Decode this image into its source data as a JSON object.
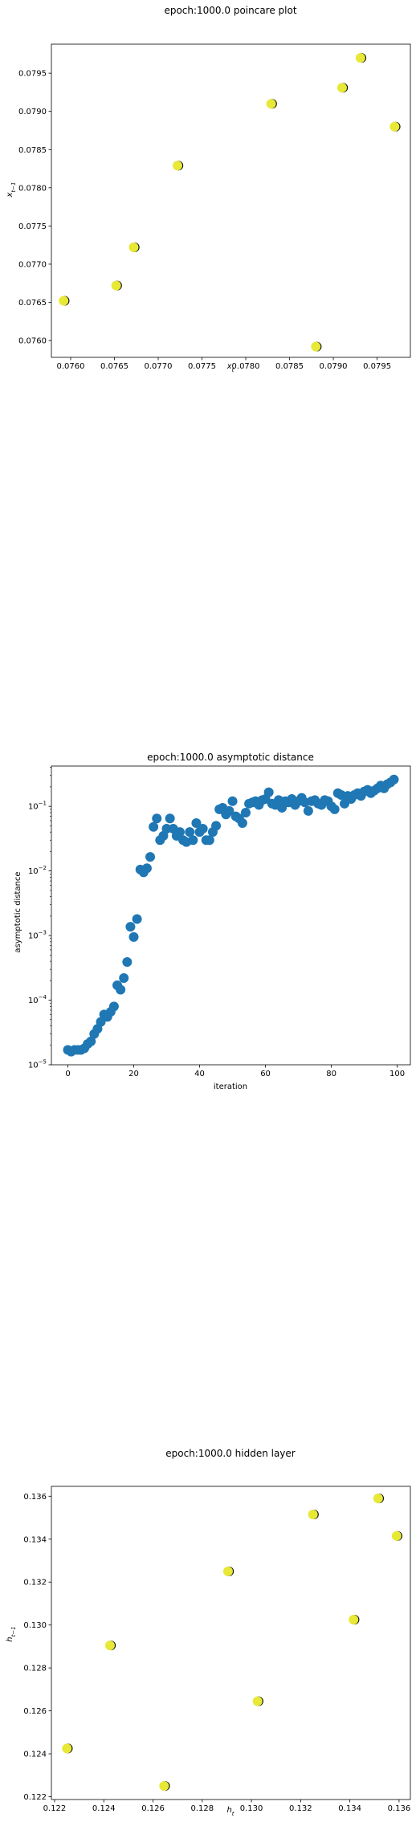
{
  "colors": {
    "scatter_fill": "#e8e837",
    "scatter_edge": "#111111",
    "dist_fill": "#1f77b4",
    "axis": "#000000"
  },
  "chart_data": [
    {
      "type": "scatter",
      "title": "epoch:1000.0 poincare plot",
      "xlabel": "x_t",
      "ylabel": "x_{t-1}",
      "xlim": [
        0.07578,
        0.07988
      ],
      "ylim": [
        0.07578,
        0.07988
      ],
      "xscale": "linear",
      "yscale": "linear",
      "grid": false,
      "xticks": [
        "0.0760",
        "0.0765",
        "0.0770",
        "0.0775",
        "0.0780",
        "0.0785",
        "0.0790",
        "0.0795"
      ],
      "yticks": [
        "0.0760",
        "0.0765",
        "0.0770",
        "0.0775",
        "0.0780",
        "0.0785",
        "0.0790",
        "0.0795"
      ],
      "x": [
        0.07592,
        0.07652,
        0.07672,
        0.07722,
        0.07829,
        0.0788,
        0.0791,
        0.07931,
        0.0797
      ],
      "y": [
        0.07652,
        0.07672,
        0.07722,
        0.07829,
        0.0791,
        0.07592,
        0.07931,
        0.0797,
        0.0788
      ]
    },
    {
      "type": "scatter",
      "title": "epoch:1000.0 asymptotic distance",
      "xlabel": "iteration",
      "ylabel": "asymptotic distance",
      "xlim": [
        -5,
        104
      ],
      "ylim": [
        1e-05,
        0.42
      ],
      "xscale": "linear",
      "yscale": "log",
      "grid": false,
      "xticks": [
        "0",
        "20",
        "40",
        "60",
        "80",
        "100"
      ],
      "yticks": [
        "10^{-5}",
        "10^{-4}",
        "10^{-3}",
        "10^{-2}",
        "10^{-1}"
      ],
      "x": [
        0,
        1,
        2,
        3,
        4,
        5,
        6,
        7,
        8,
        9,
        10,
        11,
        12,
        13,
        14,
        15,
        16,
        17,
        18,
        19,
        20,
        21,
        22,
        23,
        24,
        25,
        26,
        27,
        28,
        29,
        30,
        31,
        32,
        33,
        34,
        35,
        36,
        37,
        38,
        39,
        40,
        41,
        42,
        43,
        44,
        45,
        46,
        47,
        48,
        49,
        50,
        51,
        52,
        53,
        54,
        55,
        56,
        57,
        58,
        59,
        60,
        61,
        62,
        63,
        64,
        65,
        66,
        67,
        68,
        69,
        70,
        71,
        72,
        73,
        74,
        75,
        76,
        77,
        78,
        79,
        80,
        81,
        82,
        83,
        84,
        85,
        86,
        87,
        88,
        89,
        90,
        91,
        92,
        93,
        94,
        95,
        96,
        97,
        98,
        99
      ],
      "y": [
        1.7e-05,
        1.6e-05,
        1.7e-05,
        1.7e-05,
        1.7e-05,
        1.8e-05,
        2.1e-05,
        2.3e-05,
        3e-05,
        3.6e-05,
        4.6e-05,
        6e-05,
        5.5e-05,
        6.6e-05,
        8e-05,
        0.00017,
        0.000145,
        0.00022,
        0.00039,
        0.00137,
        0.00095,
        0.0018,
        0.0105,
        0.0095,
        0.011,
        0.0165,
        0.048,
        0.065,
        0.03,
        0.035,
        0.045,
        0.065,
        0.045,
        0.035,
        0.04,
        0.03,
        0.028,
        0.04,
        0.03,
        0.055,
        0.04,
        0.045,
        0.03,
        0.03,
        0.04,
        0.05,
        0.09,
        0.095,
        0.075,
        0.085,
        0.12,
        0.07,
        0.065,
        0.055,
        0.08,
        0.11,
        0.115,
        0.12,
        0.105,
        0.125,
        0.13,
        0.165,
        0.11,
        0.105,
        0.125,
        0.095,
        0.12,
        0.115,
        0.13,
        0.105,
        0.12,
        0.135,
        0.115,
        0.085,
        0.12,
        0.125,
        0.11,
        0.105,
        0.125,
        0.12,
        0.1,
        0.09,
        0.16,
        0.15,
        0.11,
        0.145,
        0.13,
        0.15,
        0.16,
        0.145,
        0.17,
        0.18,
        0.16,
        0.175,
        0.19,
        0.21,
        0.19,
        0.22,
        0.235,
        0.26
      ]
    },
    {
      "type": "scatter",
      "title": "epoch:1000.0 hidden layer",
      "xlabel": "h_t",
      "ylabel": "h_{t-1}",
      "xlim": [
        0.12187,
        0.13646
      ],
      "ylim": [
        0.12187,
        0.13646
      ],
      "xscale": "linear",
      "yscale": "linear",
      "grid": false,
      "xticks": [
        "0.122",
        "0.124",
        "0.126",
        "0.128",
        "0.130",
        "0.132",
        "0.134",
        "0.136"
      ],
      "yticks": [
        "0.122",
        "0.124",
        "0.126",
        "0.128",
        "0.130",
        "0.132",
        "0.134",
        "0.136"
      ],
      "x": [
        0.1225,
        0.12425,
        0.12645,
        0.12905,
        0.13025,
        0.1325,
        0.13415,
        0.13515,
        0.1359
      ],
      "y": [
        0.12425,
        0.12905,
        0.1225,
        0.1325,
        0.12645,
        0.13515,
        0.13025,
        0.1359,
        0.13415
      ]
    }
  ]
}
